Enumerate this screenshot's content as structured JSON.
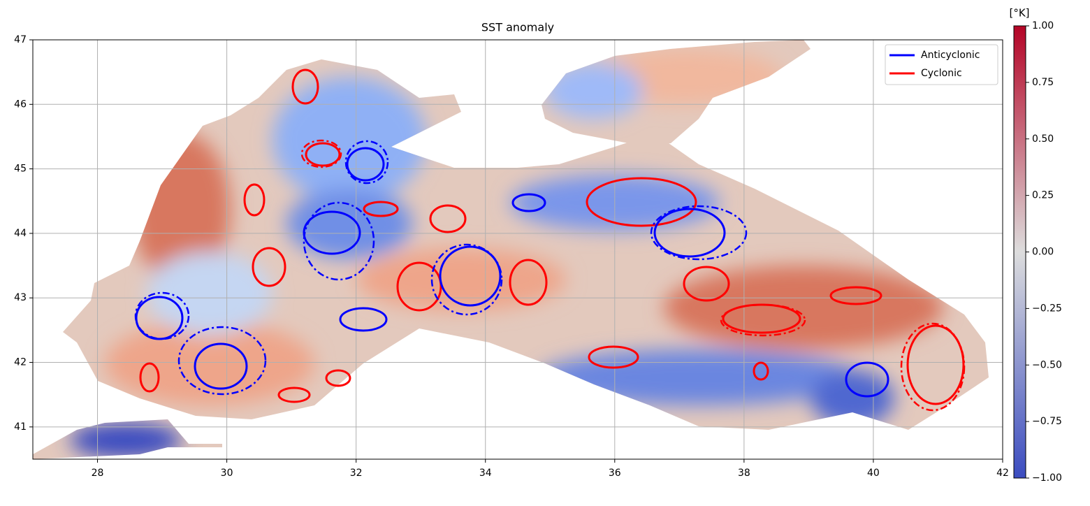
{
  "chart_data": {
    "type": "map",
    "title": "SST anomaly",
    "xlim": [
      27,
      42
    ],
    "ylim": [
      40.5,
      47
    ],
    "xticks": [
      28,
      30,
      32,
      34,
      36,
      38,
      40,
      42
    ],
    "yticks": [
      41,
      42,
      43,
      44,
      45,
      46,
      47
    ],
    "grid": true,
    "legend": "upper right",
    "series": [
      {
        "name": "Anticyclonic",
        "color": "#0000ff"
      },
      {
        "name": "Cyclonic",
        "color": "#ff0000"
      }
    ],
    "colorbar": {
      "label": "[°K]",
      "lim": [
        -1,
        1
      ],
      "ticks": [
        {
          "value": 1,
          "label": "1.00"
        },
        {
          "value": 0.75,
          "label": "0.75"
        },
        {
          "value": 0.5,
          "label": "0.50"
        },
        {
          "value": 0.25,
          "label": "0.25"
        },
        {
          "value": 0,
          "label": "0.00"
        },
        {
          "value": -0.25,
          "label": "−0.25"
        },
        {
          "value": -0.5,
          "label": "−0.50"
        },
        {
          "value": -0.75,
          "label": "−0.75"
        },
        {
          "value": -1,
          "label": "−1.00"
        }
      ],
      "colors": [
        "#3b4cc0",
        "#dddddd",
        "#b40426"
      ]
    }
  }
}
